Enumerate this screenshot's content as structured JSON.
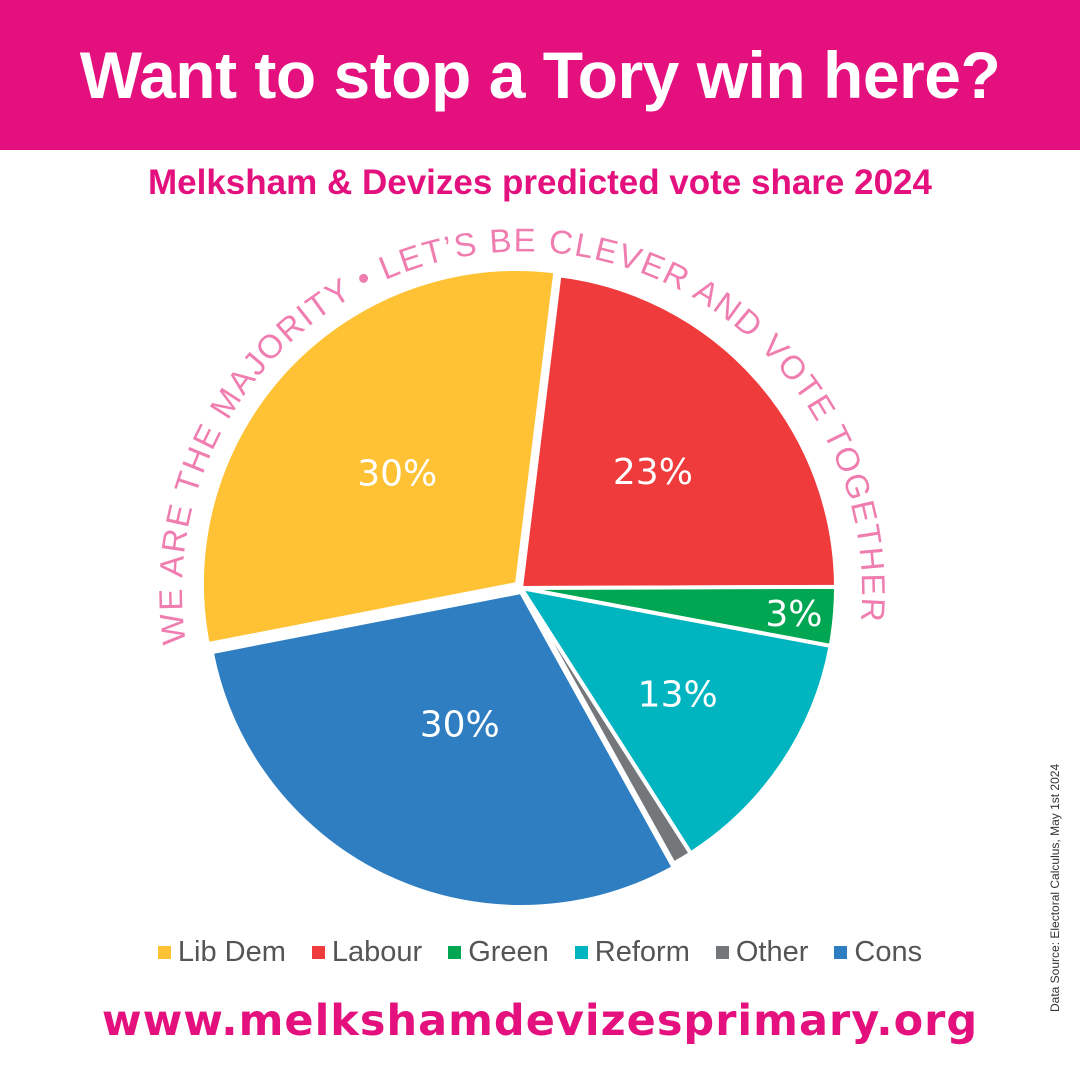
{
  "header": {
    "title": "Want to stop a Tory win here?"
  },
  "chart_data": {
    "type": "pie",
    "title": "Melksham & Devizes predicted vote share 2024",
    "arc_text": "WE ARE THE MAJORITY • LET’S BE CLEVER AND VOTE TOGETHER",
    "slices": [
      {
        "name": "Lib Dem",
        "value": 30,
        "label": "30%",
        "color": "#FFC235"
      },
      {
        "name": "Labour",
        "value": 23,
        "label": "23%",
        "color": "#EF3B3C"
      },
      {
        "name": "Green",
        "value": 3,
        "label": "3%",
        "color": "#00A651"
      },
      {
        "name": "Reform",
        "value": 13,
        "label": "13%",
        "color": "#00B5C0"
      },
      {
        "name": "Other",
        "value": 1,
        "label": "",
        "color": "#74777A"
      },
      {
        "name": "Cons",
        "value": 30,
        "label": "30%",
        "color": "#2F7EC1"
      }
    ],
    "start_angle_deg": 259,
    "legend_position": "bottom"
  },
  "footer": {
    "url": "www.melkshamdevizesprimary.org",
    "source": "Data Source: Electoral Calculus, May 1st 2024"
  },
  "colors": {
    "accent": "#E3107E",
    "arc_text": "#F07DB0"
  }
}
